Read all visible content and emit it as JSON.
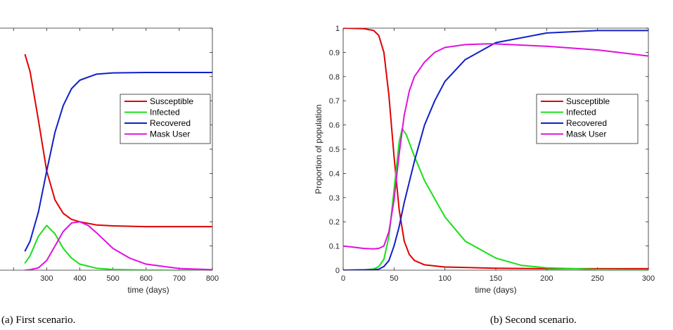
{
  "chart_data": [
    {
      "type": "line",
      "caption": "(a) First scenario.",
      "xlabel": "time (days)",
      "ylabel": "",
      "xlim": [
        0,
        800
      ],
      "ylim": [
        0,
        1
      ],
      "x_ticks": [
        300,
        400,
        500,
        600,
        700,
        800
      ],
      "x_tick_labels": [
        "300",
        "400",
        "500",
        "600",
        "700",
        "800"
      ],
      "y_ticks": [],
      "y_tick_labels": [],
      "visible_x_range": [
        235,
        800
      ],
      "legend": {
        "position": "center-right",
        "entries": [
          "Susceptible",
          "Infected",
          "Recovered",
          "Mask User"
        ]
      },
      "series": [
        {
          "name": "Susceptible",
          "color": "#e00000",
          "x": [
            235,
            250,
            275,
            300,
            325,
            350,
            375,
            400,
            450,
            500,
            600,
            700,
            800
          ],
          "y": [
            0.89,
            0.82,
            0.62,
            0.41,
            0.29,
            0.235,
            0.21,
            0.2,
            0.187,
            0.183,
            0.18,
            0.18,
            0.18
          ]
        },
        {
          "name": "Infected",
          "color": "#18e018",
          "x": [
            235,
            250,
            275,
            300,
            325,
            350,
            375,
            400,
            450,
            500,
            600,
            700,
            800
          ],
          "y": [
            0.03,
            0.06,
            0.14,
            0.185,
            0.15,
            0.09,
            0.05,
            0.025,
            0.008,
            0.003,
            0.001,
            0.0,
            0.0
          ]
        },
        {
          "name": "Recovered",
          "color": "#1020c8",
          "x": [
            235,
            250,
            275,
            300,
            325,
            350,
            375,
            400,
            450,
            500,
            600,
            700,
            800
          ],
          "y": [
            0.08,
            0.12,
            0.24,
            0.41,
            0.57,
            0.68,
            0.75,
            0.785,
            0.81,
            0.815,
            0.817,
            0.817,
            0.817
          ]
        },
        {
          "name": "Mask User",
          "color": "#e010e0",
          "x": [
            235,
            250,
            275,
            300,
            325,
            350,
            375,
            400,
            425,
            450,
            500,
            550,
            600,
            700,
            800
          ],
          "y": [
            0.0,
            0.002,
            0.01,
            0.04,
            0.1,
            0.16,
            0.195,
            0.2,
            0.185,
            0.155,
            0.09,
            0.05,
            0.025,
            0.007,
            0.002
          ]
        }
      ]
    },
    {
      "type": "line",
      "caption": "(b) Second scenario.",
      "xlabel": "time (days)",
      "ylabel": "Proportion of population",
      "xlim": [
        0,
        300
      ],
      "ylim": [
        0,
        1
      ],
      "x_ticks": [
        0,
        50,
        100,
        150,
        200,
        250,
        300
      ],
      "x_tick_labels": [
        "0",
        "50",
        "100",
        "150",
        "200",
        "250",
        "300"
      ],
      "y_ticks": [
        0,
        0.1,
        0.2,
        0.3,
        0.4,
        0.5,
        0.6,
        0.7,
        0.8,
        0.9,
        1
      ],
      "y_tick_labels": [
        "0",
        "0.1",
        "0.2",
        "0.3",
        "0.4",
        "0.5",
        "0.6",
        "0.7",
        "0.8",
        "0.9",
        "1"
      ],
      "legend": {
        "position": "center-right",
        "entries": [
          "Susceptible",
          "Infected",
          "Recovered",
          "Mask User"
        ]
      },
      "series": [
        {
          "name": "Susceptible",
          "color": "#e00000",
          "x": [
            0,
            20,
            30,
            35,
            40,
            45,
            50,
            55,
            60,
            65,
            70,
            80,
            100,
            150,
            200,
            300
          ],
          "y": [
            1.0,
            0.998,
            0.99,
            0.97,
            0.9,
            0.72,
            0.47,
            0.25,
            0.12,
            0.065,
            0.04,
            0.022,
            0.013,
            0.008,
            0.006,
            0.006
          ]
        },
        {
          "name": "Infected",
          "color": "#18e018",
          "x": [
            0,
            20,
            30,
            35,
            40,
            45,
            50,
            55,
            58,
            62,
            70,
            80,
            100,
            120,
            150,
            175,
            200,
            250,
            300
          ],
          "y": [
            0.0,
            0.001,
            0.005,
            0.015,
            0.045,
            0.14,
            0.33,
            0.53,
            0.585,
            0.56,
            0.47,
            0.37,
            0.22,
            0.12,
            0.05,
            0.02,
            0.01,
            0.003,
            0.0
          ]
        },
        {
          "name": "Recovered",
          "color": "#1020c8",
          "x": [
            0,
            30,
            35,
            40,
            45,
            50,
            55,
            60,
            70,
            80,
            90,
            100,
            120,
            150,
            200,
            250,
            300
          ],
          "y": [
            0.0,
            0.002,
            0.004,
            0.015,
            0.04,
            0.1,
            0.18,
            0.28,
            0.45,
            0.6,
            0.7,
            0.78,
            0.87,
            0.94,
            0.98,
            0.99,
            0.99
          ]
        },
        {
          "name": "Mask User",
          "color": "#e010e0",
          "x": [
            0,
            10,
            20,
            30,
            35,
            40,
            45,
            50,
            55,
            60,
            65,
            70,
            80,
            90,
            100,
            120,
            140,
            150,
            200,
            250,
            300
          ],
          "y": [
            0.1,
            0.095,
            0.09,
            0.088,
            0.09,
            0.1,
            0.16,
            0.29,
            0.48,
            0.64,
            0.74,
            0.8,
            0.86,
            0.9,
            0.92,
            0.932,
            0.935,
            0.935,
            0.925,
            0.91,
            0.885
          ]
        }
      ]
    }
  ]
}
